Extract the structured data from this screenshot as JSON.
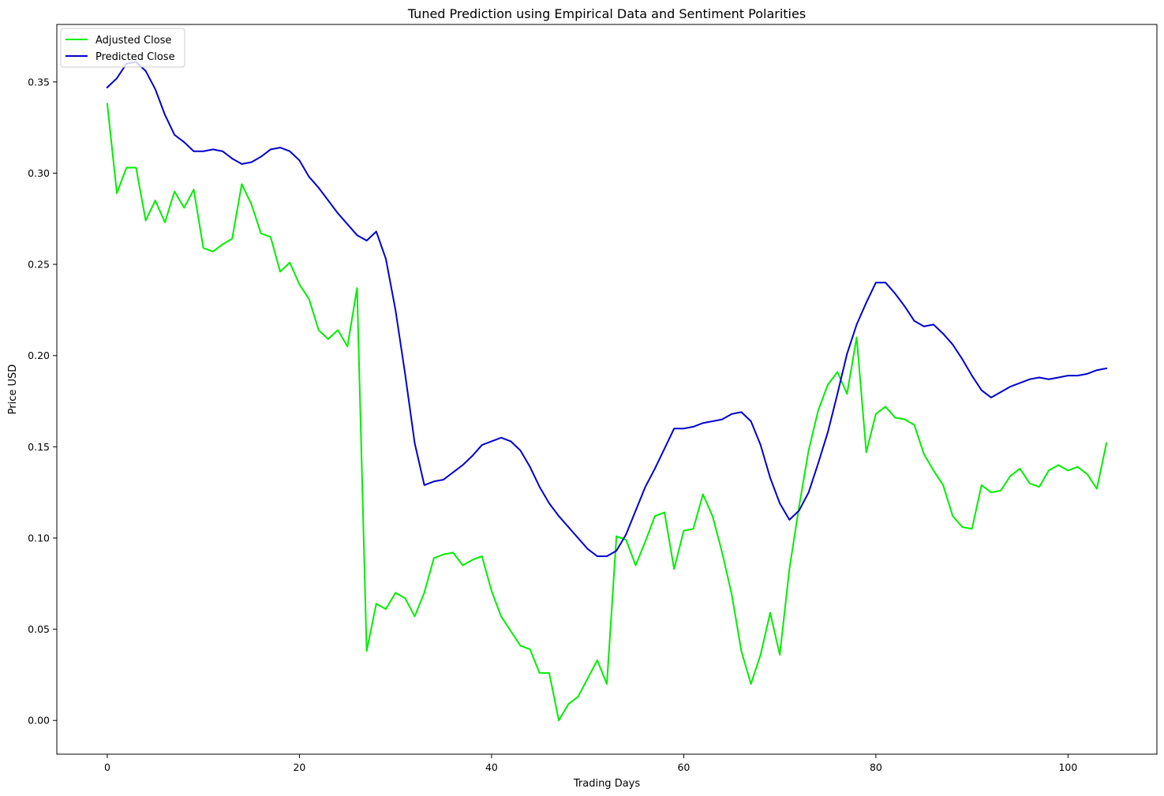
{
  "chart_data": {
    "type": "line",
    "title": "Tuned Prediction using Empirical Data and Sentiment Polarities",
    "xlabel": "Trading Days",
    "ylabel": "Price USD",
    "xlim": [
      -5.25,
      109.25
    ],
    "ylim": [
      -0.0185,
      0.3815
    ],
    "xticks": [
      0,
      20,
      40,
      60,
      80,
      100
    ],
    "xtick_labels": [
      "0",
      "20",
      "40",
      "60",
      "80",
      "100"
    ],
    "yticks": [
      0.0,
      0.05,
      0.1,
      0.15,
      0.2,
      0.25,
      0.3,
      0.35
    ],
    "ytick_labels": [
      "0.00",
      "0.05",
      "0.10",
      "0.15",
      "0.20",
      "0.25",
      "0.30",
      "0.35"
    ],
    "grid": false,
    "legend_position": "top-left",
    "series": [
      {
        "name": "Adjusted Close",
        "color": "#00ee00",
        "values": [
          0.338,
          0.289,
          0.303,
          0.303,
          0.274,
          0.285,
          0.273,
          0.29,
          0.281,
          0.291,
          0.259,
          0.257,
          0.261,
          0.264,
          0.294,
          0.283,
          0.267,
          0.265,
          0.246,
          0.251,
          0.239,
          0.231,
          0.214,
          0.209,
          0.214,
          0.205,
          0.237,
          0.038,
          0.064,
          0.061,
          0.07,
          0.067,
          0.057,
          0.07,
          0.089,
          0.091,
          0.092,
          0.085,
          0.088,
          0.09,
          0.071,
          0.057,
          0.049,
          0.041,
          0.039,
          0.026,
          0.026,
          0.0,
          0.009,
          0.013,
          0.023,
          0.033,
          0.02,
          0.101,
          0.099,
          0.085,
          0.098,
          0.112,
          0.114,
          0.083,
          0.104,
          0.105,
          0.124,
          0.112,
          0.092,
          0.069,
          0.038,
          0.02,
          0.036,
          0.059,
          0.036,
          0.083,
          0.117,
          0.148,
          0.17,
          0.184,
          0.191,
          0.179,
          0.21,
          0.147,
          0.168,
          0.172,
          0.166,
          0.165,
          0.162,
          0.146,
          0.137,
          0.129,
          0.112,
          0.106,
          0.105,
          0.129,
          0.125,
          0.126,
          0.134,
          0.138,
          0.13,
          0.128,
          0.137,
          0.14,
          0.137,
          0.139,
          0.135,
          0.127,
          0.152
        ]
      },
      {
        "name": "Predicted Close",
        "color": "#0000cc",
        "values": [
          0.347,
          0.352,
          0.36,
          0.361,
          0.356,
          0.346,
          0.332,
          0.321,
          0.317,
          0.312,
          0.312,
          0.313,
          0.312,
          0.308,
          0.305,
          0.306,
          0.309,
          0.313,
          0.314,
          0.312,
          0.307,
          0.298,
          0.292,
          0.285,
          0.278,
          0.272,
          0.266,
          0.263,
          0.268,
          0.253,
          0.225,
          0.19,
          0.152,
          0.129,
          0.131,
          0.132,
          0.136,
          0.14,
          0.145,
          0.151,
          0.153,
          0.155,
          0.153,
          0.148,
          0.139,
          0.128,
          0.119,
          0.112,
          0.106,
          0.1,
          0.094,
          0.09,
          0.09,
          0.093,
          0.102,
          0.115,
          0.128,
          0.138,
          0.149,
          0.16,
          0.16,
          0.161,
          0.163,
          0.164,
          0.165,
          0.168,
          0.169,
          0.164,
          0.151,
          0.133,
          0.119,
          0.11,
          0.115,
          0.125,
          0.141,
          0.158,
          0.179,
          0.201,
          0.217,
          0.229,
          0.24,
          0.24,
          0.234,
          0.227,
          0.219,
          0.216,
          0.217,
          0.212,
          0.206,
          0.198,
          0.189,
          0.181,
          0.177,
          0.18,
          0.183,
          0.185,
          0.187,
          0.188,
          0.187,
          0.188,
          0.189,
          0.189,
          0.19,
          0.192,
          0.193
        ]
      }
    ]
  }
}
